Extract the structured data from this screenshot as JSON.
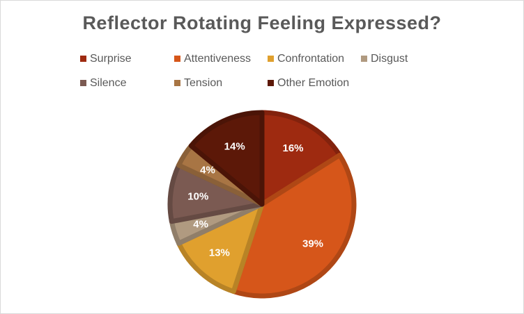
{
  "chart_data": {
    "type": "pie",
    "title": "Reflector Rotating Feeling Expressed?",
    "legend_placement": "top",
    "series": [
      {
        "name": "Surprise",
        "value": 16,
        "label": "16%",
        "color": "#9e2a10"
      },
      {
        "name": "Attentiveness",
        "value": 39,
        "label": "39%",
        "color": "#d6561a"
      },
      {
        "name": "Confrontation",
        "value": 13,
        "label": "13%",
        "color": "#e0a02e"
      },
      {
        "name": "Disgust",
        "value": 4,
        "label": "4%",
        "color": "#b09a80"
      },
      {
        "name": "Silence",
        "value": 10,
        "label": "10%",
        "color": "#7b5a52"
      },
      {
        "name": "Tension",
        "value": 4,
        "label": "4%",
        "color": "#a87544"
      },
      {
        "name": "Other Emotion",
        "value": 14,
        "label": "14%",
        "color": "#5c1808"
      }
    ]
  }
}
